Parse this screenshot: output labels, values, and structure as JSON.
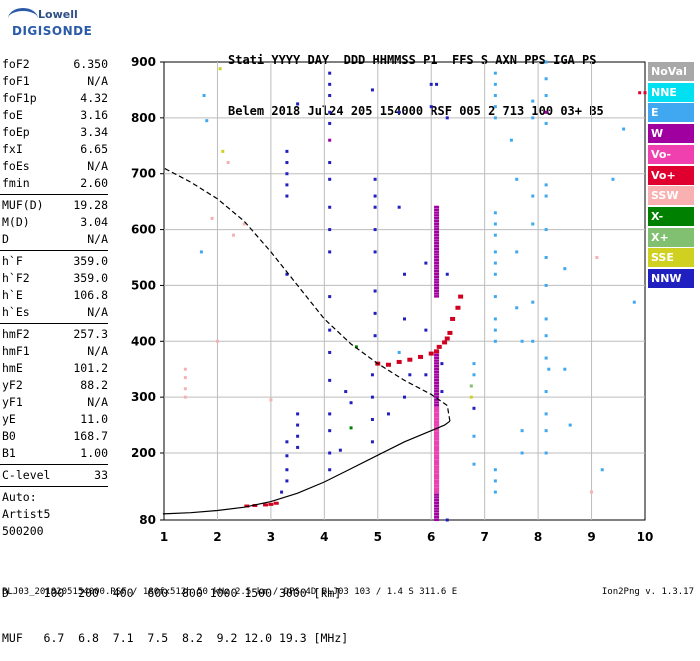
{
  "logo": {
    "line1": "Lowell",
    "line2": "DIGISONDE"
  },
  "header": {
    "line1": "Stati YYYY DAY  DDD HHMMSS P1  FFS S AXN PPS IGA PS",
    "line2": "Belem 2018 Jul24 205 154000 RSF 005 2 713 100 03+ B5"
  },
  "params": [
    {
      "k": "foF2",
      "v": "6.350"
    },
    {
      "k": "foF1",
      "v": "N/A"
    },
    {
      "k": "foF1p",
      "v": "4.32"
    },
    {
      "k": "foE",
      "v": "3.16"
    },
    {
      "k": "foEp",
      "v": "3.34"
    },
    {
      "k": "fxI",
      "v": "6.65"
    },
    {
      "k": "foEs",
      "v": "N/A"
    },
    {
      "k": "fmin",
      "v": "2.60"
    },
    {
      "sep": true
    },
    {
      "k": "MUF(D)",
      "v": "19.28"
    },
    {
      "k": "M(D)",
      "v": "3.04"
    },
    {
      "k": "D",
      "v": "N/A"
    },
    {
      "sep": true
    },
    {
      "k": "h`F",
      "v": "359.0"
    },
    {
      "k": "h`F2",
      "v": "359.0"
    },
    {
      "k": "h`E",
      "v": "106.8"
    },
    {
      "k": "h`Es",
      "v": "N/A"
    },
    {
      "sep": true
    },
    {
      "k": "hmF2",
      "v": "257.3"
    },
    {
      "k": "hmF1",
      "v": "N/A"
    },
    {
      "k": "hmE",
      "v": "101.2"
    },
    {
      "k": "yF2",
      "v": "88.2"
    },
    {
      "k": "yF1",
      "v": "N/A"
    },
    {
      "k": "yE",
      "v": "11.0"
    },
    {
      "k": "B0",
      "v": "168.7"
    },
    {
      "k": "B1",
      "v": "1.00"
    },
    {
      "sep": true
    },
    {
      "k": "C-level",
      "v": "33"
    },
    {
      "sep": true
    },
    {
      "k": "Auto:",
      "v": ""
    },
    {
      "k": "Artist5",
      "v": ""
    },
    {
      "k": "500200",
      "v": ""
    }
  ],
  "bottom": {
    "line1": "D     100  200  400  600  800 1000 1500 3000 [km]",
    "line2": "MUF   6.7  6.8  7.1  7.5  8.2  9.2 12.0 19.3 [MHz]"
  },
  "footer": "BLJ03_2018205154000.RSF / 180fx512h 50 kHz 2.5 km / DPS-4D BLJ03 103 / 1.4 S 311.6 E",
  "version": "Ion2Png v. 1.3.17",
  "legend": [
    {
      "label": "NoVal",
      "color": "#a8a8a8"
    },
    {
      "label": "NNE",
      "color": "#00e0f0"
    },
    {
      "label": "E",
      "color": "#40a8f0"
    },
    {
      "label": "W",
      "color": "#a000a0"
    },
    {
      "label": "Vo-",
      "color": "#f040b0"
    },
    {
      "label": "Vo+",
      "color": "#e00030"
    },
    {
      "label": "SSW",
      "color": "#f8b0b0"
    },
    {
      "label": "X-",
      "color": "#008000"
    },
    {
      "label": "X+",
      "color": "#80c070"
    },
    {
      "label": "SSE",
      "color": "#d0d020"
    },
    {
      "label": "NNW",
      "color": "#2020c0"
    }
  ],
  "chart_data": {
    "type": "scatter",
    "xlim": [
      1,
      10
    ],
    "ylim": [
      80,
      900
    ],
    "x_ticks": [
      "1",
      "2",
      "3",
      "4",
      "5",
      "6",
      "7",
      "8",
      "9",
      "10"
    ],
    "y_ticks": [
      "80",
      "200",
      "300",
      "400",
      "500",
      "600",
      "700",
      "800",
      "900"
    ],
    "profile_solid": [
      [
        0.98,
        91
      ],
      [
        1.5,
        93
      ],
      [
        2.0,
        97
      ],
      [
        2.5,
        103
      ],
      [
        3.0,
        113
      ],
      [
        3.5,
        128
      ],
      [
        4.0,
        148
      ],
      [
        4.5,
        172
      ],
      [
        5.0,
        196
      ],
      [
        5.5,
        220
      ],
      [
        6.0,
        240
      ],
      [
        6.25,
        250
      ],
      [
        6.35,
        257
      ]
    ],
    "profile_dashed": [
      [
        6.35,
        257
      ],
      [
        6.3,
        285
      ],
      [
        6.0,
        305
      ],
      [
        5.5,
        330
      ],
      [
        5.0,
        360
      ],
      [
        4.5,
        395
      ],
      [
        4.0,
        440
      ],
      [
        3.5,
        500
      ],
      [
        3.0,
        560
      ],
      [
        2.5,
        615
      ],
      [
        2.0,
        655
      ],
      [
        1.5,
        685
      ],
      [
        1.0,
        710
      ]
    ],
    "trace_red": [
      [
        5.0,
        360
      ],
      [
        5.2,
        358
      ],
      [
        5.4,
        363
      ],
      [
        5.6,
        367
      ],
      [
        5.8,
        372
      ],
      [
        6.0,
        378
      ],
      [
        6.1,
        382
      ],
      [
        6.15,
        390
      ],
      [
        6.25,
        398
      ],
      [
        6.3,
        405
      ],
      [
        6.35,
        415
      ],
      [
        6.4,
        440
      ],
      [
        6.5,
        460
      ],
      [
        6.55,
        480
      ]
    ],
    "trace_lowE": [
      [
        2.55,
        105
      ],
      [
        2.7,
        106
      ],
      [
        2.9,
        107
      ],
      [
        3.0,
        108
      ],
      [
        3.1,
        110
      ]
    ],
    "reflection_columns": [
      {
        "x": 6.1,
        "y_start": 80,
        "y_end": 380,
        "color": "#a000a0"
      },
      {
        "x": 6.1,
        "y_start": 480,
        "y_end": 640,
        "color": "#a000a0"
      },
      {
        "x": 6.1,
        "y_start": 130,
        "y_end": 280,
        "color": "#f040b0"
      }
    ],
    "scatter_points": [
      {
        "x": 1.75,
        "y": 840,
        "c": "#40a8f0"
      },
      {
        "x": 1.8,
        "y": 795,
        "c": "#40a8f0"
      },
      {
        "x": 2.05,
        "y": 888,
        "c": "#d0d020"
      },
      {
        "x": 2.1,
        "y": 740,
        "c": "#d0d020"
      },
      {
        "x": 2.2,
        "y": 720,
        "c": "#f8b0b0"
      },
      {
        "x": 1.7,
        "y": 560,
        "c": "#40a8f0"
      },
      {
        "x": 1.9,
        "y": 620,
        "c": "#f8b0b0"
      },
      {
        "x": 2.3,
        "y": 590,
        "c": "#f8b0b0"
      },
      {
        "x": 2.5,
        "y": 610,
        "c": "#f8b0b0"
      },
      {
        "x": 1.4,
        "y": 350,
        "c": "#f8b0b0"
      },
      {
        "x": 1.4,
        "y": 335,
        "c": "#f8b0b0"
      },
      {
        "x": 1.4,
        "y": 315,
        "c": "#f8b0b0"
      },
      {
        "x": 1.4,
        "y": 300,
        "c": "#f8b0b0"
      },
      {
        "x": 2.0,
        "y": 400,
        "c": "#f8b0b0"
      },
      {
        "x": 3.0,
        "y": 295,
        "c": "#f8b0b0"
      },
      {
        "x": 3.3,
        "y": 740,
        "c": "#2020c0"
      },
      {
        "x": 3.3,
        "y": 720,
        "c": "#2020c0"
      },
      {
        "x": 3.3,
        "y": 700,
        "c": "#2020c0"
      },
      {
        "x": 3.3,
        "y": 680,
        "c": "#2020c0"
      },
      {
        "x": 3.3,
        "y": 660,
        "c": "#2020c0"
      },
      {
        "x": 3.3,
        "y": 520,
        "c": "#2020c0"
      },
      {
        "x": 3.5,
        "y": 825,
        "c": "#2020c0"
      },
      {
        "x": 3.5,
        "y": 270,
        "c": "#2020c0"
      },
      {
        "x": 3.5,
        "y": 250,
        "c": "#2020c0"
      },
      {
        "x": 3.5,
        "y": 230,
        "c": "#2020c0"
      },
      {
        "x": 3.5,
        "y": 210,
        "c": "#2020c0"
      },
      {
        "x": 3.3,
        "y": 220,
        "c": "#2020c0"
      },
      {
        "x": 3.3,
        "y": 195,
        "c": "#2020c0"
      },
      {
        "x": 3.3,
        "y": 170,
        "c": "#2020c0"
      },
      {
        "x": 3.3,
        "y": 150,
        "c": "#2020c0"
      },
      {
        "x": 3.2,
        "y": 130,
        "c": "#2020c0"
      },
      {
        "x": 4.1,
        "y": 880,
        "c": "#2020c0"
      },
      {
        "x": 4.1,
        "y": 860,
        "c": "#2020c0"
      },
      {
        "x": 4.1,
        "y": 840,
        "c": "#2020c0"
      },
      {
        "x": 4.1,
        "y": 810,
        "c": "#2020c0"
      },
      {
        "x": 4.1,
        "y": 790,
        "c": "#2020c0"
      },
      {
        "x": 4.1,
        "y": 760,
        "c": "#a000a0"
      },
      {
        "x": 4.1,
        "y": 720,
        "c": "#2020c0"
      },
      {
        "x": 4.1,
        "y": 690,
        "c": "#2020c0"
      },
      {
        "x": 4.1,
        "y": 640,
        "c": "#2020c0"
      },
      {
        "x": 4.1,
        "y": 600,
        "c": "#2020c0"
      },
      {
        "x": 4.1,
        "y": 560,
        "c": "#2020c0"
      },
      {
        "x": 4.1,
        "y": 480,
        "c": "#2020c0"
      },
      {
        "x": 4.1,
        "y": 420,
        "c": "#2020c0"
      },
      {
        "x": 4.1,
        "y": 380,
        "c": "#2020c0"
      },
      {
        "x": 4.1,
        "y": 330,
        "c": "#2020c0"
      },
      {
        "x": 4.1,
        "y": 270,
        "c": "#2020c0"
      },
      {
        "x": 4.1,
        "y": 240,
        "c": "#2020c0"
      },
      {
        "x": 4.1,
        "y": 200,
        "c": "#2020c0"
      },
      {
        "x": 4.1,
        "y": 170,
        "c": "#2020c0"
      },
      {
        "x": 4.4,
        "y": 310,
        "c": "#2020c0"
      },
      {
        "x": 4.5,
        "y": 290,
        "c": "#2020c0"
      },
      {
        "x": 4.5,
        "y": 245,
        "c": "#008000"
      },
      {
        "x": 4.3,
        "y": 205,
        "c": "#2020c0"
      },
      {
        "x": 4.6,
        "y": 390,
        "c": "#008000"
      },
      {
        "x": 4.9,
        "y": 850,
        "c": "#2020c0"
      },
      {
        "x": 4.95,
        "y": 690,
        "c": "#2020c0"
      },
      {
        "x": 4.95,
        "y": 660,
        "c": "#2020c0"
      },
      {
        "x": 4.95,
        "y": 640,
        "c": "#2020c0"
      },
      {
        "x": 4.95,
        "y": 600,
        "c": "#2020c0"
      },
      {
        "x": 4.95,
        "y": 560,
        "c": "#2020c0"
      },
      {
        "x": 4.95,
        "y": 490,
        "c": "#2020c0"
      },
      {
        "x": 4.95,
        "y": 450,
        "c": "#2020c0"
      },
      {
        "x": 4.95,
        "y": 410,
        "c": "#2020c0"
      },
      {
        "x": 4.9,
        "y": 340,
        "c": "#2020c0"
      },
      {
        "x": 4.9,
        "y": 300,
        "c": "#2020c0"
      },
      {
        "x": 4.9,
        "y": 260,
        "c": "#2020c0"
      },
      {
        "x": 4.9,
        "y": 220,
        "c": "#2020c0"
      },
      {
        "x": 5.2,
        "y": 270,
        "c": "#2020c0"
      },
      {
        "x": 5.4,
        "y": 640,
        "c": "#2020c0"
      },
      {
        "x": 5.4,
        "y": 810,
        "c": "#2020c0"
      },
      {
        "x": 5.5,
        "y": 520,
        "c": "#2020c0"
      },
      {
        "x": 5.5,
        "y": 300,
        "c": "#2020c0"
      },
      {
        "x": 5.6,
        "y": 340,
        "c": "#2020c0"
      },
      {
        "x": 5.5,
        "y": 440,
        "c": "#2020c0"
      },
      {
        "x": 5.9,
        "y": 540,
        "c": "#2020c0"
      },
      {
        "x": 5.9,
        "y": 420,
        "c": "#2020c0"
      },
      {
        "x": 5.9,
        "y": 340,
        "c": "#2020c0"
      },
      {
        "x": 6.0,
        "y": 860,
        "c": "#2020c0"
      },
      {
        "x": 6.0,
        "y": 820,
        "c": "#2020c0"
      },
      {
        "x": 6.1,
        "y": 860,
        "c": "#2020c0"
      },
      {
        "x": 6.3,
        "y": 800,
        "c": "#2020c0"
      },
      {
        "x": 6.3,
        "y": 520,
        "c": "#2020c0"
      },
      {
        "x": 6.2,
        "y": 360,
        "c": "#2020c0"
      },
      {
        "x": 6.2,
        "y": 310,
        "c": "#2020c0"
      },
      {
        "x": 6.3,
        "y": 80,
        "c": "#2020c0"
      },
      {
        "x": 6.8,
        "y": 280,
        "c": "#2020c0"
      },
      {
        "x": 6.75,
        "y": 300,
        "c": "#d0d020"
      },
      {
        "x": 6.75,
        "y": 320,
        "c": "#80c070"
      },
      {
        "x": 5.4,
        "y": 380,
        "c": "#40a8f0"
      },
      {
        "x": 7.2,
        "y": 880,
        "c": "#40a8f0"
      },
      {
        "x": 7.2,
        "y": 860,
        "c": "#40a8f0"
      },
      {
        "x": 7.2,
        "y": 840,
        "c": "#40a8f0"
      },
      {
        "x": 7.2,
        "y": 820,
        "c": "#40a8f0"
      },
      {
        "x": 7.2,
        "y": 800,
        "c": "#40a8f0"
      },
      {
        "x": 7.2,
        "y": 630,
        "c": "#40a8f0"
      },
      {
        "x": 7.2,
        "y": 610,
        "c": "#40a8f0"
      },
      {
        "x": 7.2,
        "y": 590,
        "c": "#40a8f0"
      },
      {
        "x": 7.2,
        "y": 560,
        "c": "#40a8f0"
      },
      {
        "x": 7.2,
        "y": 540,
        "c": "#40a8f0"
      },
      {
        "x": 7.2,
        "y": 520,
        "c": "#40a8f0"
      },
      {
        "x": 7.2,
        "y": 480,
        "c": "#40a8f0"
      },
      {
        "x": 7.2,
        "y": 440,
        "c": "#40a8f0"
      },
      {
        "x": 7.2,
        "y": 420,
        "c": "#40a8f0"
      },
      {
        "x": 7.2,
        "y": 400,
        "c": "#40a8f0"
      },
      {
        "x": 7.2,
        "y": 170,
        "c": "#40a8f0"
      },
      {
        "x": 7.2,
        "y": 150,
        "c": "#40a8f0"
      },
      {
        "x": 7.2,
        "y": 130,
        "c": "#40a8f0"
      },
      {
        "x": 6.8,
        "y": 360,
        "c": "#40a8f0"
      },
      {
        "x": 6.8,
        "y": 340,
        "c": "#40a8f0"
      },
      {
        "x": 6.8,
        "y": 180,
        "c": "#40a8f0"
      },
      {
        "x": 6.8,
        "y": 230,
        "c": "#40a8f0"
      },
      {
        "x": 7.5,
        "y": 760,
        "c": "#40a8f0"
      },
      {
        "x": 7.6,
        "y": 690,
        "c": "#40a8f0"
      },
      {
        "x": 7.6,
        "y": 560,
        "c": "#40a8f0"
      },
      {
        "x": 7.6,
        "y": 460,
        "c": "#40a8f0"
      },
      {
        "x": 7.7,
        "y": 400,
        "c": "#40a8f0"
      },
      {
        "x": 7.7,
        "y": 240,
        "c": "#40a8f0"
      },
      {
        "x": 7.7,
        "y": 200,
        "c": "#40a8f0"
      },
      {
        "x": 7.9,
        "y": 830,
        "c": "#40a8f0"
      },
      {
        "x": 7.9,
        "y": 800,
        "c": "#40a8f0"
      },
      {
        "x": 7.9,
        "y": 660,
        "c": "#40a8f0"
      },
      {
        "x": 7.9,
        "y": 610,
        "c": "#40a8f0"
      },
      {
        "x": 7.9,
        "y": 470,
        "c": "#40a8f0"
      },
      {
        "x": 7.9,
        "y": 400,
        "c": "#40a8f0"
      },
      {
        "x": 8.15,
        "y": 900,
        "c": "#40a8f0"
      },
      {
        "x": 8.15,
        "y": 870,
        "c": "#40a8f0"
      },
      {
        "x": 8.15,
        "y": 840,
        "c": "#40a8f0"
      },
      {
        "x": 8.15,
        "y": 810,
        "c": "#a000a0"
      },
      {
        "x": 8.15,
        "y": 790,
        "c": "#40a8f0"
      },
      {
        "x": 8.15,
        "y": 680,
        "c": "#40a8f0"
      },
      {
        "x": 8.15,
        "y": 660,
        "c": "#40a8f0"
      },
      {
        "x": 8.15,
        "y": 600,
        "c": "#40a8f0"
      },
      {
        "x": 8.15,
        "y": 550,
        "c": "#40a8f0"
      },
      {
        "x": 8.15,
        "y": 500,
        "c": "#40a8f0"
      },
      {
        "x": 8.15,
        "y": 440,
        "c": "#40a8f0"
      },
      {
        "x": 8.15,
        "y": 410,
        "c": "#40a8f0"
      },
      {
        "x": 8.15,
        "y": 370,
        "c": "#40a8f0"
      },
      {
        "x": 8.15,
        "y": 310,
        "c": "#40a8f0"
      },
      {
        "x": 8.15,
        "y": 270,
        "c": "#40a8f0"
      },
      {
        "x": 8.15,
        "y": 240,
        "c": "#40a8f0"
      },
      {
        "x": 8.15,
        "y": 200,
        "c": "#40a8f0"
      },
      {
        "x": 8.2,
        "y": 350,
        "c": "#40a8f0"
      },
      {
        "x": 8.5,
        "y": 530,
        "c": "#40a8f0"
      },
      {
        "x": 8.5,
        "y": 350,
        "c": "#40a8f0"
      },
      {
        "x": 8.6,
        "y": 250,
        "c": "#40a8f0"
      },
      {
        "x": 9.1,
        "y": 550,
        "c": "#f8b0b0"
      },
      {
        "x": 9.0,
        "y": 130,
        "c": "#f8b0b0"
      },
      {
        "x": 9.2,
        "y": 170,
        "c": "#40a8f0"
      },
      {
        "x": 9.4,
        "y": 690,
        "c": "#40a8f0"
      },
      {
        "x": 9.6,
        "y": 780,
        "c": "#40a8f0"
      },
      {
        "x": 9.8,
        "y": 470,
        "c": "#40a8f0"
      },
      {
        "x": 9.9,
        "y": 845,
        "c": "#e00030"
      },
      {
        "x": 10.0,
        "y": 845,
        "c": "#e00030"
      }
    ]
  }
}
